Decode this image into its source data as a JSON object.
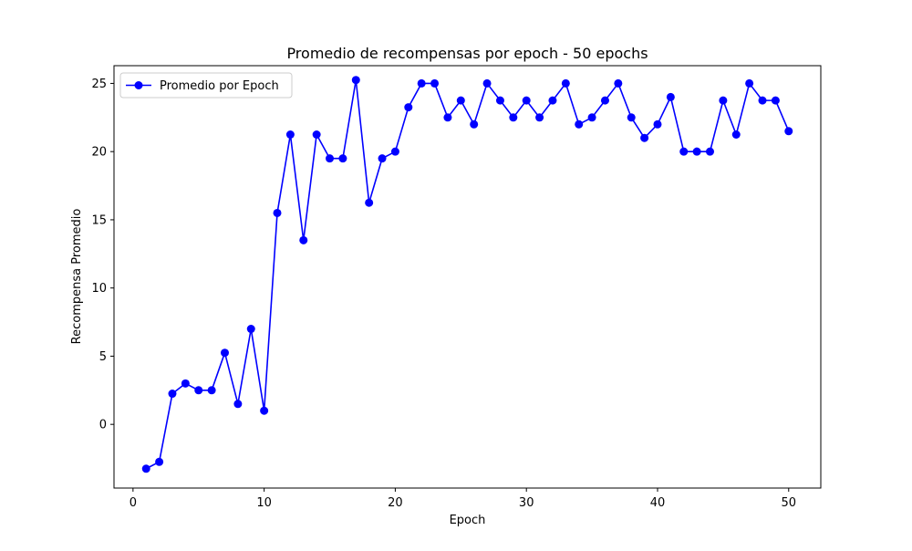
{
  "chart_data": {
    "type": "line",
    "title": "Promedio de recompensas por epoch - 50 epochs",
    "xlabel": "Epoch",
    "ylabel": "Recompensa Promedio",
    "xlim": [
      -1.45,
      52.45
    ],
    "ylim": [
      -4.67,
      26.3
    ],
    "xticks": [
      0,
      10,
      20,
      30,
      40,
      50
    ],
    "yticks": [
      0,
      5,
      10,
      15,
      20,
      25
    ],
    "grid": false,
    "legend_position": "upper left",
    "series": [
      {
        "name": "Promedio por Epoch",
        "color": "#0000ff",
        "marker": "circle",
        "x": [
          1,
          2,
          3,
          4,
          5,
          6,
          7,
          8,
          9,
          10,
          11,
          12,
          13,
          14,
          15,
          16,
          17,
          18,
          19,
          20,
          21,
          22,
          23,
          24,
          25,
          26,
          27,
          28,
          29,
          30,
          31,
          32,
          33,
          34,
          35,
          36,
          37,
          38,
          39,
          40,
          41,
          42,
          43,
          44,
          45,
          46,
          47,
          48,
          49,
          50
        ],
        "y": [
          -3.25,
          -2.75,
          2.25,
          3.0,
          2.5,
          2.5,
          5.25,
          1.5,
          7.0,
          1.0,
          15.5,
          21.25,
          13.5,
          21.25,
          19.5,
          19.5,
          25.25,
          16.25,
          19.5,
          20.0,
          23.25,
          25.0,
          25.0,
          22.5,
          23.75,
          22.0,
          25.0,
          23.75,
          22.5,
          23.75,
          22.5,
          23.75,
          25.0,
          22.0,
          22.5,
          23.75,
          25.0,
          22.5,
          21.0,
          22.0,
          24.0,
          20.0,
          20.0,
          20.0,
          23.75,
          21.25,
          25.0,
          23.75,
          23.75,
          21.5
        ]
      }
    ]
  }
}
